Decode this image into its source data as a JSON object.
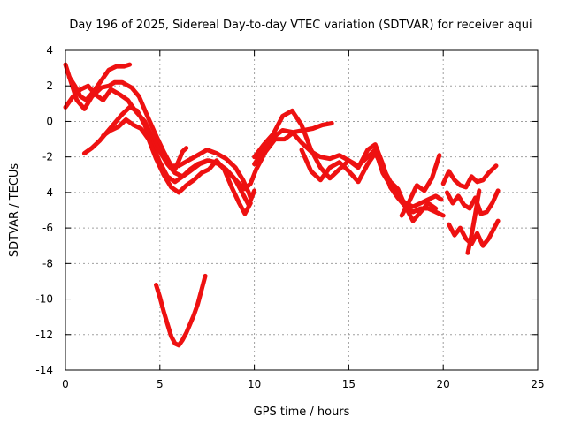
{
  "chart_data": {
    "type": "line",
    "title": "Day 196 of 2025, Sidereal Day-to-day VTEC variation (SDTVAR) for receiver aqui",
    "xlabel": "GPS time / hours",
    "ylabel": "SDTVAR / TECUs",
    "xlim": [
      0,
      25
    ],
    "ylim": [
      -14,
      4
    ],
    "xticks": [
      0,
      5,
      10,
      15,
      20,
      25
    ],
    "yticks": [
      4,
      2,
      0,
      -2,
      -4,
      -6,
      -8,
      -10,
      -12,
      -14
    ],
    "grid": true,
    "color": "#ee1111",
    "series": [
      {
        "name": "track-1",
        "x": [
          0.0,
          0.3,
          0.6,
          1.0,
          1.4,
          1.9,
          2.3,
          2.6,
          3.0,
          3.5,
          3.9,
          4.3,
          4.8,
          5.2,
          5.6,
          6.0,
          6.5,
          7.0,
          7.5,
          8.0,
          8.5,
          9.0,
          9.4,
          9.7,
          9.8
        ],
        "y": [
          3.2,
          2.2,
          1.2,
          0.7,
          1.4,
          1.9,
          2.0,
          2.2,
          2.2,
          1.9,
          1.4,
          0.4,
          -0.8,
          -1.7,
          -2.5,
          -2.5,
          -2.2,
          -1.9,
          -1.6,
          -1.8,
          -2.1,
          -2.6,
          -3.3,
          -4.0,
          -4.3
        ]
      },
      {
        "name": "track-2",
        "x": [
          0.0,
          0.4,
          0.8,
          1.2,
          1.6,
          2.0,
          2.4,
          2.9,
          3.3,
          3.7,
          4.2,
          4.6,
          5.0,
          5.4,
          5.8,
          6.2,
          6.6,
          7.1,
          7.6,
          8.1,
          8.6,
          9.1,
          9.5,
          9.8,
          10.1,
          10.6,
          11.1,
          11.6,
          12.1,
          12.6,
          13.1,
          13.6,
          14.1
        ],
        "y": [
          0.8,
          1.4,
          1.8,
          2.0,
          1.5,
          1.2,
          1.8,
          1.5,
          1.2,
          0.6,
          0.0,
          -0.9,
          -1.7,
          -2.4,
          -2.9,
          -3.1,
          -2.8,
          -2.4,
          -2.2,
          -2.4,
          -2.8,
          -3.4,
          -3.8,
          -3.5,
          -2.7,
          -1.7,
          -1.0,
          -1.0,
          -0.6,
          -0.5,
          -0.4,
          -0.2,
          -0.1
        ]
      },
      {
        "name": "track-3",
        "x": [
          0.2,
          0.5,
          0.8,
          1.1,
          1.5,
          1.9,
          2.3,
          2.7,
          3.1,
          3.4
        ],
        "y": [
          2.5,
          2.0,
          1.4,
          1.2,
          1.7,
          2.3,
          2.9,
          3.1,
          3.1,
          3.2
        ]
      },
      {
        "name": "track-4",
        "x": [
          1.0,
          1.4,
          1.8,
          2.2,
          2.6,
          3.0,
          3.4,
          3.8,
          4.2,
          4.6,
          5.0,
          5.4,
          5.8,
          6.2,
          6.6,
          7.0,
          7.5,
          8.0,
          8.5,
          9.0,
          9.4,
          9.7,
          10.0
        ],
        "y": [
          -1.8,
          -1.5,
          -1.1,
          -0.6,
          -0.1,
          0.4,
          0.8,
          0.6,
          -0.2,
          -1.3,
          -2.3,
          -3.1,
          -3.4,
          -3.1,
          -2.7,
          -2.4,
          -2.2,
          -2.3,
          -2.7,
          -3.3,
          -4.1,
          -4.7,
          -3.9
        ]
      },
      {
        "name": "track-5",
        "x": [
          2.0,
          2.4,
          2.8,
          3.2,
          3.6,
          4.0,
          4.4,
          4.8,
          5.2,
          5.6,
          6.0,
          6.4,
          6.8,
          7.2,
          7.6,
          8.0,
          8.4,
          8.8,
          9.2,
          9.5,
          9.8
        ],
        "y": [
          -0.8,
          -0.5,
          -0.3,
          0.1,
          -0.2,
          -0.4,
          -1.0,
          -2.1,
          -3.0,
          -3.7,
          -4.0,
          -3.6,
          -3.3,
          -2.9,
          -2.7,
          -2.2,
          -2.7,
          -3.7,
          -4.6,
          -5.2,
          -4.6
        ]
      },
      {
        "name": "track-6",
        "x": [
          5.8,
          6.0,
          6.2,
          6.4
        ],
        "y": [
          -2.7,
          -2.2,
          -1.7,
          -1.5
        ]
      },
      {
        "name": "track-7",
        "x": [
          10.0,
          10.5,
          11.0,
          11.5,
          12.0,
          12.5,
          13.0,
          13.5,
          14.0,
          14.5,
          15.0,
          15.5,
          16.0,
          16.4,
          16.8,
          17.2,
          17.6,
          18.0,
          18.4,
          18.8,
          19.2,
          19.6,
          20.0
        ],
        "y": [
          -2.4,
          -1.6,
          -0.9,
          -0.5,
          -0.6,
          -1.2,
          -1.7,
          -2.0,
          -2.1,
          -1.9,
          -2.2,
          -2.6,
          -1.6,
          -1.3,
          -2.4,
          -3.7,
          -4.3,
          -4.8,
          -5.1,
          -4.9,
          -4.9,
          -5.1,
          -5.3
        ]
      },
      {
        "name": "track-8",
        "x": [
          10.0,
          10.5,
          11.0,
          11.5,
          12.0,
          12.5,
          13.0,
          13.5,
          14.0,
          14.5,
          15.0,
          15.5,
          16.0,
          16.4,
          16.8,
          17.2,
          17.6,
          18.0,
          18.4,
          18.8,
          19.2,
          19.6,
          19.9
        ],
        "y": [
          -2.0,
          -1.3,
          -0.7,
          0.3,
          0.6,
          -0.2,
          -1.6,
          -2.6,
          -3.2,
          -2.7,
          -2.2,
          -2.5,
          -2.0,
          -1.6,
          -2.9,
          -3.6,
          -4.2,
          -4.6,
          -4.8,
          -4.6,
          -4.4,
          -4.2,
          -4.4
        ]
      },
      {
        "name": "track-9",
        "x": [
          12.5,
          13.0,
          13.5,
          14.0,
          14.5,
          15.0,
          15.5,
          16.0,
          16.4,
          16.8,
          17.2,
          17.6,
          18.0,
          18.4,
          18.8,
          19.2,
          19.6
        ],
        "y": [
          -1.6,
          -2.8,
          -3.3,
          -2.6,
          -2.3,
          -2.8,
          -3.4,
          -2.4,
          -1.8,
          -2.6,
          -3.4,
          -3.8,
          -4.8,
          -5.6,
          -5.1,
          -4.6,
          -4.9
        ]
      },
      {
        "name": "track-10",
        "x": [
          17.8,
          18.2,
          18.6,
          19.0,
          19.4,
          19.8
        ],
        "y": [
          -5.3,
          -4.5,
          -3.6,
          -3.9,
          -3.2,
          -1.9
        ]
      },
      {
        "name": "track-11",
        "x": [
          20.0,
          20.3,
          20.6,
          20.9,
          21.2,
          21.5,
          21.8,
          22.1,
          22.4,
          22.8
        ],
        "y": [
          -3.5,
          -2.8,
          -3.3,
          -3.6,
          -3.7,
          -3.1,
          -3.4,
          -3.3,
          -2.9,
          -2.5
        ]
      },
      {
        "name": "track-12",
        "x": [
          20.2,
          20.5,
          20.8,
          21.1,
          21.4,
          21.7,
          22.0,
          22.3,
          22.6,
          22.9
        ],
        "y": [
          -4.0,
          -4.6,
          -4.2,
          -4.7,
          -4.9,
          -4.3,
          -5.2,
          -5.1,
          -4.6,
          -3.9
        ]
      },
      {
        "name": "track-13",
        "x": [
          20.3,
          20.6,
          20.9,
          21.2,
          21.5,
          21.8,
          22.1,
          22.4,
          22.7,
          22.9
        ],
        "y": [
          -5.8,
          -6.4,
          -6.0,
          -6.6,
          -6.9,
          -6.3,
          -7.0,
          -6.6,
          -6.0,
          -5.6
        ]
      },
      {
        "name": "track-14",
        "x": [
          21.3,
          21.5,
          21.7,
          21.9
        ],
        "y": [
          -7.4,
          -6.4,
          -5.2,
          -3.9
        ]
      },
      {
        "name": "track-15",
        "x": [
          4.8,
          5.0,
          5.2,
          5.4,
          5.6,
          5.8,
          6.0,
          6.2,
          6.4,
          6.6,
          6.8,
          7.0,
          7.2,
          7.4
        ],
        "y": [
          -9.2,
          -9.9,
          -10.7,
          -11.4,
          -12.1,
          -12.5,
          -12.6,
          -12.3,
          -11.9,
          -11.4,
          -10.9,
          -10.3,
          -9.5,
          -8.7
        ]
      }
    ]
  }
}
